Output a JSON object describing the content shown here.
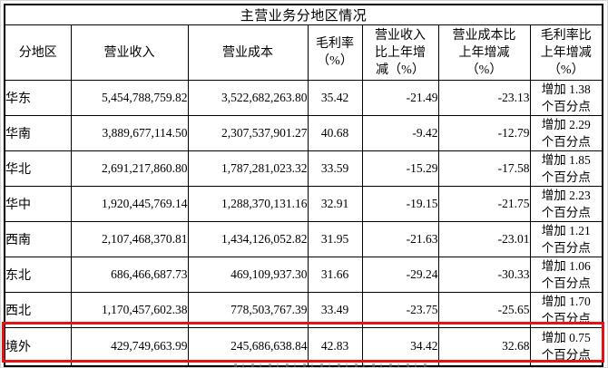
{
  "table": {
    "title": "主营业务分地区情况",
    "columns": [
      {
        "key": "region",
        "label": "分地区"
      },
      {
        "key": "revenue",
        "label": "营业收入"
      },
      {
        "key": "cost",
        "label": "营业成本"
      },
      {
        "key": "gross_margin",
        "label": "毛利率\n（%）"
      },
      {
        "key": "revenue_yoy",
        "label": "营业收入\n比上年增\n减（%）"
      },
      {
        "key": "cost_yoy",
        "label": "营业成本比\n上年增减\n（%）"
      },
      {
        "key": "margin_yoy",
        "label": "毛利率比\n上年增减\n（%）"
      }
    ],
    "rows": [
      {
        "region": "华东",
        "revenue": "5,454,788,759.82",
        "cost": "3,522,682,263.80",
        "gross_margin": "35.42",
        "revenue_yoy": "-21.49",
        "cost_yoy": "-23.13",
        "margin_yoy": "增加 1.38\n个百分点",
        "highlighted": false
      },
      {
        "region": "华南",
        "revenue": "3,889,677,114.50",
        "cost": "2,307,537,901.27",
        "gross_margin": "40.68",
        "revenue_yoy": "-9.42",
        "cost_yoy": "-12.79",
        "margin_yoy": "增加 2.29\n个百分点",
        "highlighted": false
      },
      {
        "region": "华北",
        "revenue": "2,691,217,860.80",
        "cost": "1,787,281,023.32",
        "gross_margin": "33.59",
        "revenue_yoy": "-15.29",
        "cost_yoy": "-17.58",
        "margin_yoy": "增加 1.85\n个百分点",
        "highlighted": false
      },
      {
        "region": "华中",
        "revenue": "1,920,445,769.14",
        "cost": "1,288,370,131.16",
        "gross_margin": "32.91",
        "revenue_yoy": "-19.15",
        "cost_yoy": "-21.75",
        "margin_yoy": "增加 2.23\n个百分点",
        "highlighted": false
      },
      {
        "region": "西南",
        "revenue": "2,107,468,370.81",
        "cost": "1,434,126,052.82",
        "gross_margin": "31.95",
        "revenue_yoy": "-21.63",
        "cost_yoy": "-23.01",
        "margin_yoy": "增加 1.21\n个百分点",
        "highlighted": false
      },
      {
        "region": "东北",
        "revenue": "686,466,687.73",
        "cost": "469,109,937.30",
        "gross_margin": "31.66",
        "revenue_yoy": "-29.24",
        "cost_yoy": "-30.33",
        "margin_yoy": "增加 1.06\n个百分点",
        "highlighted": false
      },
      {
        "region": "西北",
        "revenue": "1,170,457,602.38",
        "cost": "778,503,767.39",
        "gross_margin": "33.49",
        "revenue_yoy": "-23.75",
        "cost_yoy": "-25.65",
        "margin_yoy": "增加 1.70\n个百分点",
        "highlighted": false
      },
      {
        "region": "境外",
        "revenue": "429,749,663.99",
        "cost": "245,686,638.84",
        "gross_margin": "42.83",
        "revenue_yoy": "34.42",
        "cost_yoy": "32.68",
        "margin_yoy": "增加 0.75\n个百分点",
        "highlighted": true
      }
    ],
    "highlight_color": "#e41414"
  }
}
